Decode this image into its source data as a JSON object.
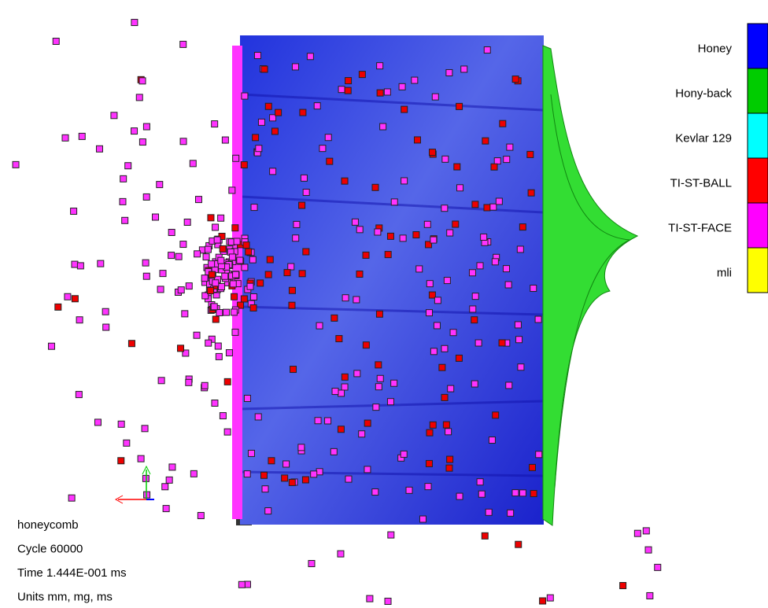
{
  "legend": [
    {
      "label": "Honey",
      "color": "#0000ff"
    },
    {
      "label": "Hony-back",
      "color": "#00cc00"
    },
    {
      "label": "Kevlar 129",
      "color": "#00ffff"
    },
    {
      "label": "TI-ST-BALL",
      "color": "#ff0000"
    },
    {
      "label": "TI-ST-FACE",
      "color": "#ff00ff"
    },
    {
      "label": "mli",
      "color": "#ffff00"
    }
  ],
  "info": [
    "honeycomb",
    "Cycle 60000",
    "Time 1.444E-001 ms",
    "Units mm, mg, ms"
  ]
}
